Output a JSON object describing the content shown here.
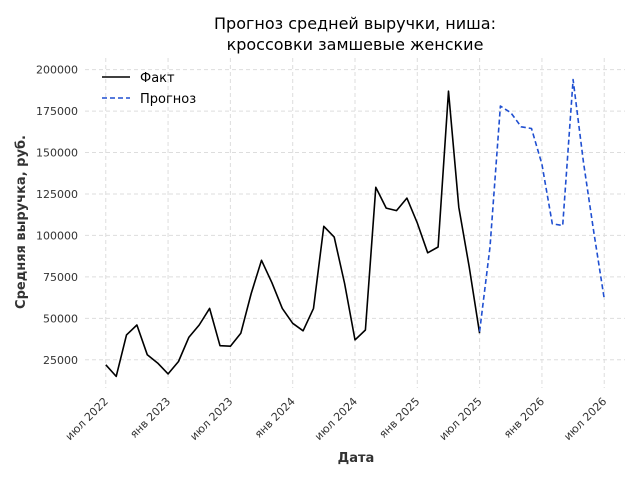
{
  "chart_data": {
    "type": "line",
    "title_lines": [
      "Прогноз средней выручки, ниша:",
      "кроссовки замшевые женские"
    ],
    "xlabel": "Дата",
    "ylabel": "Средняя выручка, руб.",
    "x_ticks": [
      "июл 2022",
      "янв 2023",
      "июл 2023",
      "янв 2024",
      "июл 2024",
      "янв 2025",
      "июл 2025",
      "янв 2026",
      "июл 2026"
    ],
    "y_ticks": [
      25000,
      50000,
      75000,
      100000,
      125000,
      150000,
      175000,
      200000
    ],
    "y_tick_labels": [
      "25000",
      "50000",
      "75000",
      "100000",
      "125000",
      "150000",
      "175000",
      "200000"
    ],
    "ylim": [
      8000,
      207000
    ],
    "grid": true,
    "legend_position": "top-left",
    "series": [
      {
        "name": "Факт",
        "style": "solid",
        "color": "#000000",
        "x": [
          "2022-07",
          "2022-08",
          "2022-09",
          "2022-10",
          "2022-11",
          "2022-12",
          "2023-01",
          "2023-02",
          "2023-03",
          "2023-04",
          "2023-05",
          "2023-06",
          "2023-07",
          "2023-08",
          "2023-09",
          "2023-10",
          "2023-11",
          "2023-12",
          "2024-01",
          "2024-02",
          "2024-03",
          "2024-04",
          "2024-05",
          "2024-06",
          "2024-07",
          "2024-08",
          "2024-09",
          "2024-10",
          "2024-11",
          "2024-12",
          "2025-01",
          "2025-02",
          "2025-03",
          "2025-04",
          "2025-05",
          "2025-06",
          "2025-07"
        ],
        "values": [
          22000,
          15000,
          40000,
          46000,
          28000,
          23000,
          16500,
          24000,
          38500,
          46000,
          56000,
          33500,
          33200,
          41000,
          65000,
          85000,
          71500,
          56000,
          47000,
          42500,
          56000,
          105500,
          99000,
          71000,
          37000,
          43000,
          129000,
          116500,
          115000,
          122500,
          107500,
          89500,
          93000,
          187000,
          117000,
          81000,
          41000
        ]
      },
      {
        "name": "Прогноз",
        "style": "dashed",
        "color": "#1f4fd1",
        "x": [
          "2025-07",
          "2025-08",
          "2025-09",
          "2025-10",
          "2025-11",
          "2025-12",
          "2026-01",
          "2026-02",
          "2026-03",
          "2026-04",
          "2026-05",
          "2026-06",
          "2026-07"
        ],
        "values": [
          42000,
          93000,
          178000,
          174000,
          165500,
          164500,
          143000,
          107000,
          106000,
          194000,
          144000,
          102000,
          62000
        ]
      }
    ]
  }
}
